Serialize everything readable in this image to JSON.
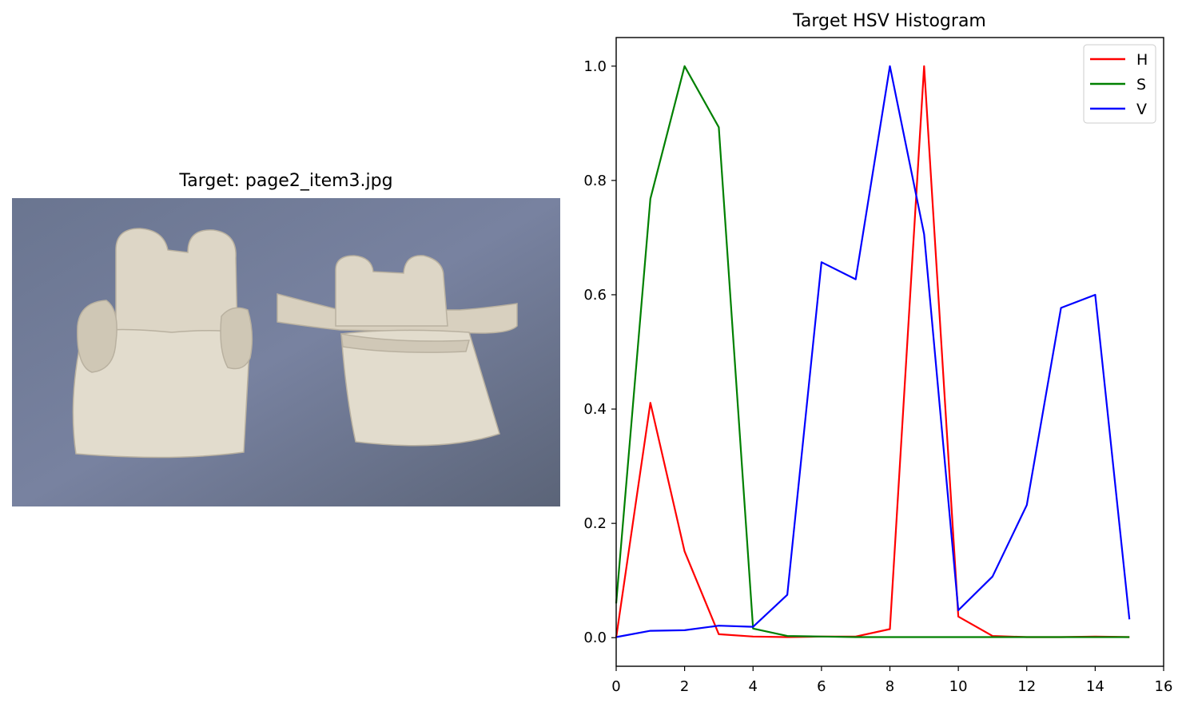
{
  "image_panel": {
    "title": "Target: page2_item3.jpg"
  },
  "colors": {
    "H": "#ff0000",
    "S": "#008000",
    "V": "#0000ff",
    "photo_background": "#6d7891",
    "cushion": "#ddd6c6"
  },
  "chart_data": {
    "type": "line",
    "title": "Target HSV Histogram",
    "xlabel": "",
    "ylabel": "",
    "xlim": [
      0,
      16
    ],
    "ylim": [
      -0.05,
      1.05
    ],
    "xticks": [
      "0",
      "2",
      "4",
      "6",
      "8",
      "10",
      "12",
      "14",
      "16"
    ],
    "yticks": [
      "0.0",
      "0.2",
      "0.4",
      "0.6",
      "0.8",
      "1.0"
    ],
    "legend_position": "top-right",
    "grid": false,
    "x": [
      0,
      1,
      2,
      3,
      4,
      5,
      6,
      7,
      8,
      9,
      10,
      11,
      12,
      13,
      14,
      15
    ],
    "series": [
      {
        "name": "H",
        "color": "#ff0000",
        "values": [
          0.0,
          0.411,
          0.151,
          0.006,
          0.002,
          0.001,
          0.002,
          0.002,
          0.015,
          1.0,
          0.037,
          0.003,
          0.001,
          0.001,
          0.002,
          0.001
        ]
      },
      {
        "name": "S",
        "color": "#008000",
        "values": [
          0.06,
          0.768,
          1.0,
          0.893,
          0.016,
          0.003,
          0.002,
          0.001,
          0.001,
          0.001,
          0.001,
          0.001,
          0.001,
          0.001,
          0.001,
          0.001
        ]
      },
      {
        "name": "V",
        "color": "#0000ff",
        "values": [
          0.001,
          0.012,
          0.013,
          0.021,
          0.019,
          0.075,
          0.657,
          0.627,
          1.0,
          0.706,
          0.048,
          0.107,
          0.232,
          0.577,
          0.6,
          0.032
        ]
      }
    ]
  }
}
